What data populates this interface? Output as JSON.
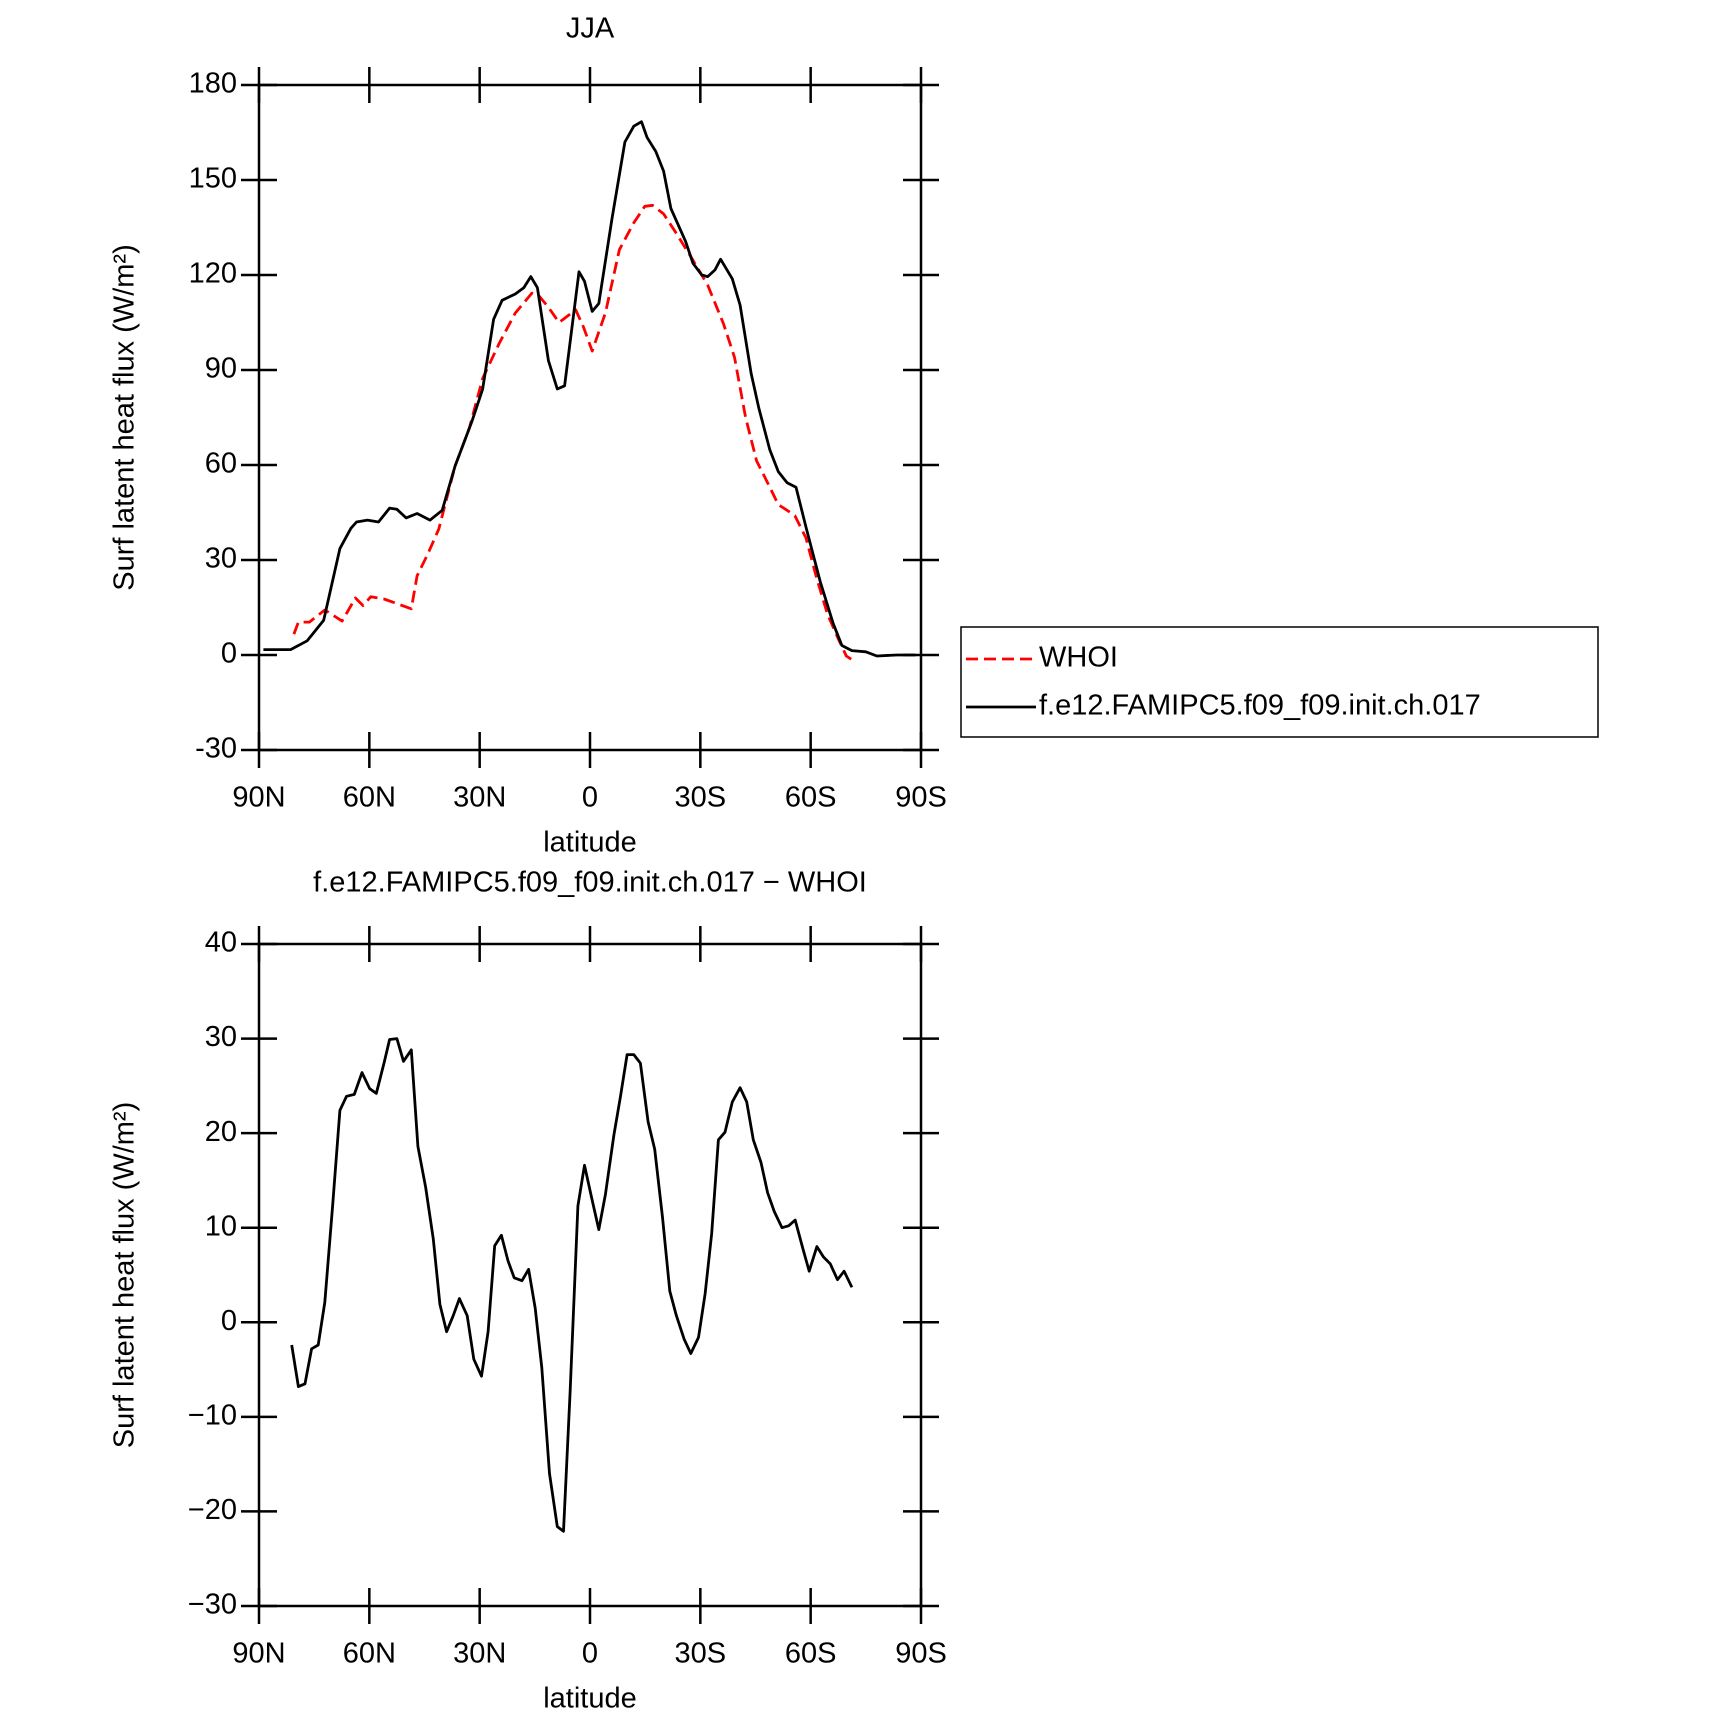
{
  "chart_data": [
    {
      "type": "line",
      "title": "JJA",
      "xlabel": "latitude",
      "ylabel": "Surf latent heat flux (W/m²)",
      "xlim": [
        90,
        -90
      ],
      "xticks": [
        {
          "value": 90,
          "label": "90N"
        },
        {
          "value": 60,
          "label": "60N"
        },
        {
          "value": 30,
          "label": "30N"
        },
        0,
        {
          "value": -30,
          "label": "30S"
        },
        {
          "value": -60,
          "label": "60S"
        },
        {
          "value": -90,
          "label": "90S"
        }
      ],
      "ylim": [
        -30,
        180
      ],
      "yticks": [
        -30,
        0,
        30,
        60,
        90,
        120,
        150,
        180
      ],
      "legend": "right",
      "series": [
        {
          "name": "WHOI",
          "color": "#ff0000",
          "style": "dashed",
          "x": [
            80.5,
            79.3,
            76.3,
            72.1,
            67.4,
            63.8,
            61.7,
            59.6,
            56,
            48.6,
            47,
            44.1,
            41.1,
            36.7,
            32.8,
            29.2,
            24.7,
            20.3,
            15.8,
            14.3,
            11.3,
            8.4,
            3.9,
            1.8,
            -0.6,
            -4.2,
            -8,
            -11.9,
            -14.9,
            -17,
            -20,
            -23,
            -27.4,
            -32,
            -36.3,
            -39.3,
            -42.3,
            -45.3,
            -48.3,
            -51.2,
            -53.6,
            -55.7,
            -58.7,
            -61.7,
            -64.6,
            -67.6,
            -69.7,
            -71.5
          ],
          "values": [
            6.6,
            10.4,
            10.4,
            14.2,
            10.7,
            18,
            15.6,
            18.4,
            17.7,
            14.6,
            25,
            31.9,
            39.8,
            59.6,
            71.7,
            87.3,
            98.4,
            108,
            114.3,
            114,
            109.8,
            105,
            109,
            103.6,
            96,
            108,
            128,
            136.5,
            141.7,
            142,
            139.3,
            134,
            125.8,
            116.8,
            104.6,
            94,
            75,
            61.3,
            54.4,
            47.5,
            45.7,
            44,
            37,
            24,
            12.8,
            4.9,
            -0.3,
            -1.7
          ]
        },
        {
          "name": "f.e12.FAMIPC5.f09_f09.init.ch.017",
          "color": "#000000",
          "style": "solid",
          "x": [
            88.8,
            81.4,
            76.9,
            72.4,
            68,
            65,
            63.5,
            60.5,
            57.5,
            54.5,
            52.5,
            50,
            47,
            43.5,
            40.2,
            36.7,
            32.2,
            29.2,
            26.2,
            23.9,
            20.3,
            18,
            16.1,
            14.3,
            11.3,
            8.9,
            6.9,
            3,
            1.5,
            -0.6,
            -2.4,
            -6,
            -9.5,
            -11.9,
            -14,
            -15.5,
            -17.9,
            -20,
            -22,
            -26,
            -28,
            -30.4,
            -32,
            -34,
            -35.5,
            -38.7,
            -40.8,
            -43.8,
            -45.9,
            -48.9,
            -51.2,
            -53.6,
            -56,
            -58.7,
            -62.6,
            -66.1,
            -68.5,
            -71.2,
            -75,
            -78,
            -83.4,
            -88.5
          ],
          "values": [
            1.7,
            1.7,
            4.5,
            11,
            33.6,
            40,
            42,
            42.6,
            42,
            46.4,
            46,
            43.3,
            44.7,
            42.6,
            45.7,
            59.6,
            73.5,
            83.9,
            106,
            112,
            114,
            116,
            119.5,
            116,
            93,
            84,
            85,
            121,
            118,
            108.5,
            111,
            138,
            162,
            167,
            168.4,
            163.5,
            159,
            152.8,
            141,
            130.6,
            123.7,
            120,
            119.5,
            121.6,
            125,
            118.8,
            110.5,
            89,
            78,
            64.8,
            57.9,
            54.4,
            53,
            40.5,
            23.2,
            10,
            3,
            1.4,
            1,
            -0.3,
            0,
            0
          ]
        }
      ]
    },
    {
      "type": "line",
      "title": "f.e12.FAMIPC5.f09_f09.init.ch.017 − WHOI",
      "xlabel": "latitude",
      "ylabel": "Surf latent heat flux (W/m²)",
      "xlim": [
        90,
        -90
      ],
      "xticks": [
        {
          "value": 90,
          "label": "90N"
        },
        {
          "value": 60,
          "label": "60N"
        },
        {
          "value": 30,
          "label": "30N"
        },
        0,
        {
          "value": -30,
          "label": "30S"
        },
        {
          "value": -60,
          "label": "60S"
        },
        {
          "value": -90,
          "label": "90S"
        }
      ],
      "ylim": [
        -30,
        40
      ],
      "yticks": [
        {
          "value": -30,
          "label": "−30"
        },
        {
          "value": -20,
          "label": "−20"
        },
        {
          "value": -10,
          "label": "−10"
        },
        0,
        10,
        20,
        30,
        40
      ],
      "series": [
        {
          "color": "#000000",
          "style": "solid",
          "x": [
            81.1,
            79.3,
            77.5,
            75.7,
            73.9,
            72.1,
            70,
            68,
            66.2,
            64.1,
            62,
            59.9,
            58.1,
            56,
            54.5,
            52.5,
            50.7,
            48.6,
            46.8,
            44.7,
            42.6,
            40.8,
            39,
            37.2,
            35.5,
            33.4,
            31.6,
            29.5,
            27.7,
            25.9,
            24.1,
            22.3,
            20.6,
            18.5,
            16.7,
            14.9,
            13.1,
            11,
            8.9,
            7.2,
            5.4,
            3.3,
            1.5,
            -0.6,
            -2.4,
            -4.2,
            -6.5,
            -8.3,
            -10.1,
            -11.9,
            -13.7,
            -15.8,
            -17.6,
            -19.7,
            -21.7,
            -23.5,
            -25.6,
            -27.4,
            -29.5,
            -31.3,
            -33.1,
            -34.9,
            -36.7,
            -38.7,
            -40.8,
            -42.6,
            -44.4,
            -46.5,
            -48.3,
            -50.1,
            -52.2,
            -54,
            -55.8,
            -57.8,
            -59.6,
            -61.7,
            -63.5,
            -65.3,
            -67.3,
            -69.1,
            -71.2
          ],
          "values": [
            -2.4,
            -6.8,
            -6.5,
            -2.8,
            -2.4,
            2.1,
            12.3,
            22.4,
            23.9,
            24.1,
            26.4,
            24.7,
            24.2,
            27.4,
            29.9,
            30,
            27.6,
            28.8,
            18.6,
            14.3,
            8.8,
            1.9,
            -1,
            0.7,
            2.5,
            0.7,
            -3.9,
            -5.7,
            -1,
            8.1,
            9.2,
            6.5,
            4.7,
            4.4,
            5.6,
            1.5,
            -4.8,
            -16,
            -21.6,
            -22.1,
            -7.4,
            12.3,
            16.6,
            12.9,
            9.8,
            13.5,
            19.8,
            23.9,
            28.3,
            28.3,
            27.4,
            21.2,
            18.3,
            11.1,
            3.3,
            0.7,
            -1.8,
            -3.3,
            -1.6,
            3,
            9.4,
            19.3,
            20.1,
            23.3,
            24.8,
            23.3,
            19.3,
            16.9,
            13.7,
            11.7,
            10,
            10.2,
            10.8,
            7.9,
            5.4,
            8,
            6.9,
            6.2,
            4.5,
            5.4,
            3.7
          ]
        }
      ]
    }
  ]
}
